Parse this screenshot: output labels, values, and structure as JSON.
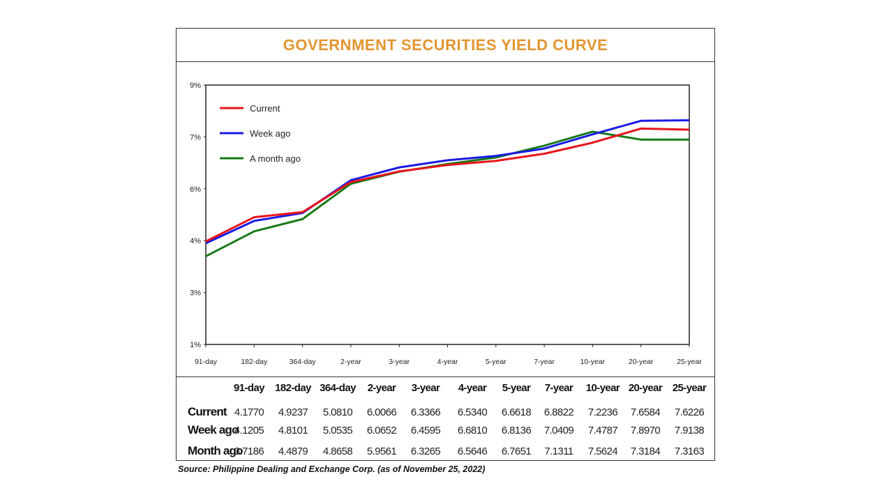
{
  "title": "GOVERNMENT SECURITIES YIELD CURVE",
  "source": "Source: Philippine Dealing and Exchange Corp. (as of November 25, 2022)",
  "chart_data": {
    "type": "line",
    "title": "GOVERNMENT SECURITIES YIELD CURVE",
    "categories": [
      "91-day",
      "182-day",
      "364-day",
      "2-year",
      "3-year",
      "4-year",
      "5-year",
      "7-year",
      "10-year",
      "20-year",
      "25-year"
    ],
    "table_headers": [
      "91-day",
      "182-day",
      "364-day",
      "2-year",
      "3-year",
      "4-year",
      "5-year",
      "7-year",
      "10-year",
      "20-year",
      "25-year"
    ],
    "series": [
      {
        "name": "Current",
        "color": "#E8141B",
        "values": [
          4.177,
          4.9237,
          5.081,
          6.0066,
          6.3366,
          6.534,
          6.6618,
          6.8822,
          7.2236,
          7.6584,
          7.6226
        ],
        "labels": [
          "4.1770",
          "4.9237",
          "5.0810",
          "6.0066",
          "6.3366",
          "6.5340",
          "6.6618",
          "6.8822",
          "7.2236",
          "7.6584",
          "7.6226"
        ]
      },
      {
        "name": "Week ago",
        "color": "#1A1AE6",
        "values": [
          4.1205,
          4.8101,
          5.0535,
          6.0652,
          6.4595,
          6.681,
          6.8136,
          7.0409,
          7.4787,
          7.897,
          7.9138
        ],
        "labels": [
          "4.1205",
          "4.8101",
          "5.0535",
          "6.0652",
          "6.4595",
          "6.6810",
          "6.8136",
          "7.0409",
          "7.4787",
          "7.8970",
          "7.9138"
        ]
      },
      {
        "name": "A month ago",
        "row_label": "Month ago",
        "color": "#177A17",
        "values": [
          3.7186,
          4.4879,
          4.8658,
          5.9561,
          6.3265,
          6.5646,
          6.7651,
          7.1311,
          7.5624,
          7.3184,
          7.3163
        ],
        "labels": [
          "3.7186",
          "4.4879",
          "4.8658",
          "5.9561",
          "6.3265",
          "6.5646",
          "6.7651",
          "7.1311",
          "7.5624",
          "7.3184",
          "7.3163"
        ]
      }
    ],
    "row_labels": [
      "Current",
      "Week ago",
      "Month ago"
    ],
    "ylim": [
      1,
      9
    ],
    "y_tick_labels": [
      "1%",
      "3%",
      "4%",
      "6%",
      "7%",
      "9%"
    ],
    "grid": false,
    "legend": "top-left"
  }
}
